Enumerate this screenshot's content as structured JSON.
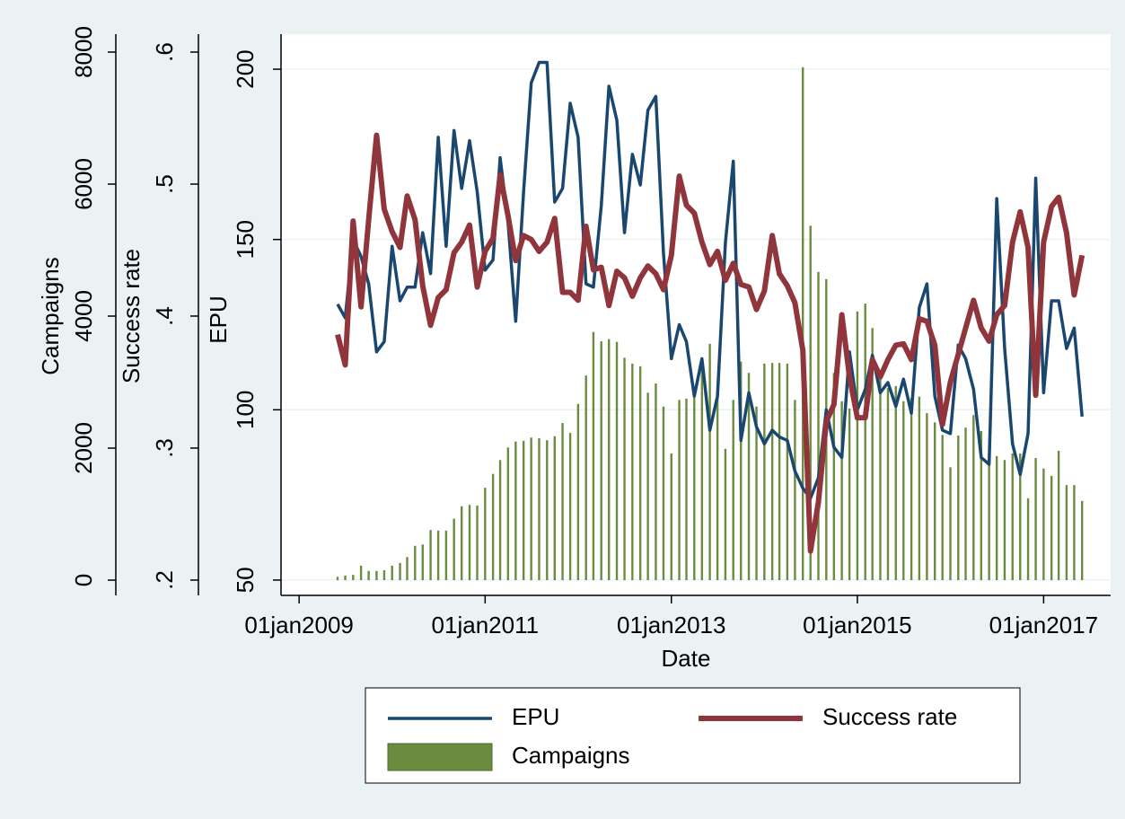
{
  "chart_data": {
    "type": "combo",
    "xlabel": "Date",
    "ylabel": "EPU",
    "y2label": "Success rate",
    "y3label": "Campaigns",
    "xlim": [
      "2008-10-22",
      "2017-09-21"
    ],
    "xticks": [
      {
        "value": "2009-01-01",
        "label": "01jan2009"
      },
      {
        "value": "2011-01-01",
        "label": "01jan2011"
      },
      {
        "value": "2013-01-01",
        "label": "01jan2013"
      },
      {
        "value": "2015-01-01",
        "label": "01jan2015"
      },
      {
        "value": "2017-01-01",
        "label": "01jan2017"
      }
    ],
    "ylim": [
      45.5,
      210.3
    ],
    "yticks": [
      50,
      100,
      150,
      200
    ],
    "y2lim": [
      0.1884,
      0.6136
    ],
    "y2ticks": [
      {
        "value": 0.2,
        "label": ".2"
      },
      {
        "value": 0.3,
        "label": ".3"
      },
      {
        "value": 0.4,
        "label": ".4"
      },
      {
        "value": 0.5,
        "label": ".5"
      },
      {
        "value": 0.6,
        "label": ".6"
      }
    ],
    "y3lim": [
      -231,
      8272
    ],
    "y3ticks": [
      0,
      2000,
      4000,
      6000,
      8000
    ],
    "grid": true,
    "x": [
      "2009-06-01",
      "2009-07-01",
      "2009-08-01",
      "2009-09-01",
      "2009-10-01",
      "2009-11-01",
      "2009-12-01",
      "2010-01-01",
      "2010-02-01",
      "2010-03-01",
      "2010-04-01",
      "2010-05-01",
      "2010-06-01",
      "2010-07-01",
      "2010-08-01",
      "2010-09-01",
      "2010-10-01",
      "2010-11-01",
      "2010-12-01",
      "2011-01-01",
      "2011-02-01",
      "2011-03-01",
      "2011-04-01",
      "2011-05-01",
      "2011-06-01",
      "2011-07-01",
      "2011-08-01",
      "2011-09-01",
      "2011-10-01",
      "2011-11-01",
      "2011-12-01",
      "2012-01-01",
      "2012-02-01",
      "2012-03-01",
      "2012-04-01",
      "2012-05-01",
      "2012-06-01",
      "2012-07-01",
      "2012-08-01",
      "2012-09-01",
      "2012-10-01",
      "2012-11-01",
      "2012-12-01",
      "2013-01-01",
      "2013-02-01",
      "2013-03-01",
      "2013-04-01",
      "2013-05-01",
      "2013-06-01",
      "2013-07-01",
      "2013-08-01",
      "2013-09-01",
      "2013-10-01",
      "2013-11-01",
      "2013-12-01",
      "2014-01-01",
      "2014-02-01",
      "2014-03-01",
      "2014-04-01",
      "2014-05-01",
      "2014-06-01",
      "2014-07-01",
      "2014-08-01",
      "2014-09-01",
      "2014-10-01",
      "2014-11-01",
      "2014-12-01",
      "2015-01-01",
      "2015-02-01",
      "2015-03-01",
      "2015-04-01",
      "2015-05-01",
      "2015-06-01",
      "2015-07-01",
      "2015-08-01",
      "2015-09-01",
      "2015-10-01",
      "2015-11-01",
      "2015-12-01",
      "2016-01-01",
      "2016-02-01",
      "2016-03-01",
      "2016-04-01",
      "2016-05-01",
      "2016-06-01",
      "2016-07-01",
      "2016-08-01",
      "2016-09-01",
      "2016-10-01",
      "2016-11-01",
      "2016-12-01",
      "2017-01-01",
      "2017-02-01",
      "2017-03-01",
      "2017-04-01",
      "2017-05-01",
      "2017-06-01"
    ],
    "series": [
      {
        "name": "EPU",
        "type": "line",
        "axis": "y",
        "color": "#1a476f",
        "values": [
          131,
          127,
          150,
          145,
          137,
          117,
          120,
          148,
          132,
          136,
          136,
          152,
          140,
          180,
          148,
          182,
          165,
          179,
          164,
          141,
          144,
          174,
          155,
          126,
          164,
          196,
          202,
          202,
          161,
          165,
          190,
          180,
          137,
          136,
          160,
          195,
          185,
          152,
          175,
          166,
          188,
          192,
          146,
          115,
          125,
          120,
          104,
          115,
          94,
          104,
          149,
          173,
          91,
          105,
          95,
          90,
          94,
          92,
          91,
          82,
          77,
          74,
          80,
          100,
          89,
          86,
          117,
          100,
          106,
          116,
          105,
          108,
          101,
          109,
          99,
          130,
          137,
          104,
          94,
          93,
          119,
          115,
          106,
          86,
          84,
          162,
          118,
          90,
          81,
          93,
          168,
          105,
          132,
          132,
          118,
          124,
          98
        ]
      },
      {
        "name": "Success rate",
        "type": "line",
        "axis": "y2",
        "color": "#90353b",
        "values": [
          0.386,
          0.363,
          0.472,
          0.407,
          0.473,
          0.537,
          0.481,
          0.464,
          0.452,
          0.491,
          0.473,
          0.423,
          0.393,
          0.414,
          0.42,
          0.448,
          0.456,
          0.469,
          0.422,
          0.449,
          0.459,
          0.507,
          0.476,
          0.442,
          0.461,
          0.458,
          0.449,
          0.456,
          0.474,
          0.418,
          0.418,
          0.412,
          0.468,
          0.435,
          0.437,
          0.408,
          0.434,
          0.429,
          0.415,
          0.429,
          0.438,
          0.432,
          0.42,
          0.446,
          0.506,
          0.484,
          0.478,
          0.456,
          0.439,
          0.449,
          0.427,
          0.44,
          0.424,
          0.422,
          0.405,
          0.419,
          0.461,
          0.432,
          0.423,
          0.41,
          0.374,
          0.222,
          0.259,
          0.32,
          0.333,
          0.401,
          0.354,
          0.323,
          0.323,
          0.367,
          0.354,
          0.367,
          0.378,
          0.379,
          0.367,
          0.398,
          0.396,
          0.378,
          0.318,
          0.35,
          0.371,
          0.391,
          0.412,
          0.391,
          0.381,
          0.401,
          0.408,
          0.456,
          0.479,
          0.452,
          0.34,
          0.456,
          0.483,
          0.49,
          0.463,
          0.416,
          0.446
        ]
      },
      {
        "name": "Campaigns",
        "type": "bar",
        "axis": "y3",
        "color": "#6b8c3e",
        "values": [
          50,
          70,
          80,
          220,
          140,
          140,
          150,
          220,
          260,
          350,
          520,
          540,
          760,
          750,
          750,
          930,
          1120,
          1140,
          1130,
          1400,
          1610,
          1820,
          2010,
          2100,
          2110,
          2160,
          2150,
          2120,
          2180,
          2380,
          2230,
          2670,
          3100,
          3760,
          3620,
          3650,
          3610,
          3370,
          3280,
          3240,
          2840,
          2980,
          2630,
          1920,
          2730,
          2750,
          2800,
          3240,
          3580,
          2940,
          1990,
          2730,
          3310,
          3140,
          2630,
          3280,
          3290,
          3290,
          3280,
          2730,
          7770,
          5370,
          4670,
          4560,
          3140,
          2710,
          2600,
          4070,
          4190,
          3820,
          3140,
          2910,
          2940,
          2710,
          2760,
          2780,
          2530,
          2390,
          2200,
          1710,
          2190,
          2310,
          2500,
          2260,
          1920,
          1880,
          1820,
          1920,
          1920,
          1240,
          1850,
          1690,
          1580,
          1960,
          1440,
          1440,
          1200
        ]
      }
    ]
  }
}
